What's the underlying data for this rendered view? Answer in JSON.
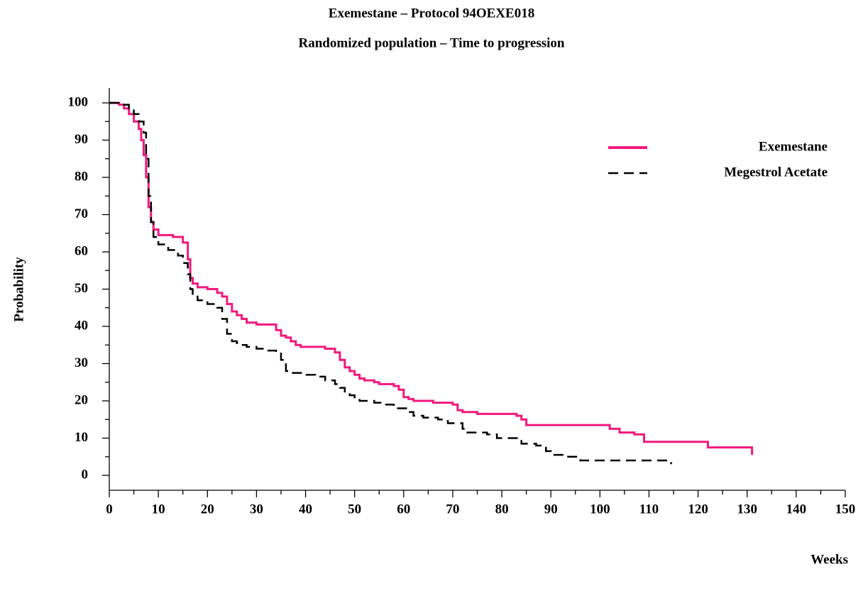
{
  "chart_data": {
    "type": "step",
    "title": "Exemestane   – Protocol 94OEXE018",
    "subtitle": "Randomized population  – Time to progression",
    "x_label": "Weeks",
    "y_label": "Probability",
    "xlim": [
      0,
      150
    ],
    "ylim": [
      -4,
      104
    ],
    "xticks": [
      0,
      10,
      20,
      30,
      40,
      50,
      60,
      70,
      80,
      90,
      100,
      110,
      120,
      130,
      140,
      150
    ],
    "yticks": [
      0,
      10,
      20,
      30,
      40,
      50,
      60,
      70,
      80,
      90,
      100
    ],
    "legend": "upper right",
    "series": [
      {
        "name": "Exemestane",
        "color": "#f0197d",
        "dash": false,
        "x": [
          0,
          2,
          3,
          4,
          5,
          6,
          6.5,
          7,
          7.5,
          8,
          8.5,
          9,
          10,
          13,
          15,
          16,
          16.5,
          17,
          18,
          20,
          22,
          23,
          24,
          25,
          26,
          27,
          28,
          30,
          34,
          35,
          36,
          37,
          38,
          39,
          44,
          46,
          47,
          48,
          49,
          50,
          51,
          52,
          54,
          55,
          58,
          59,
          60,
          61,
          62,
          66,
          70,
          71,
          72,
          75,
          83,
          84,
          85,
          102,
          104,
          107,
          109,
          122,
          131
        ],
        "values": [
          100,
          99.5,
          98.5,
          97,
          95,
          93,
          90,
          86,
          80,
          72,
          68,
          66,
          64.5,
          64,
          62.5,
          58,
          53,
          51.5,
          50.5,
          50,
          49,
          48,
          46,
          44,
          43,
          42,
          41,
          40.5,
          39,
          37.5,
          37,
          36,
          35,
          34.5,
          34,
          33,
          31,
          29,
          28,
          27,
          26,
          25.5,
          25,
          24.5,
          24,
          23,
          21,
          20.5,
          20,
          19.5,
          19,
          17.5,
          17,
          16.5,
          16,
          15,
          13.5,
          12.5,
          11.5,
          11,
          9,
          7.5,
          5.5
        ]
      },
      {
        "name": "Megestrol Acetate",
        "color": "#000000",
        "dash": true,
        "x": [
          0,
          3,
          4,
          5,
          6,
          7,
          7.5,
          8,
          8.5,
          9,
          10,
          12,
          14,
          15,
          16,
          16.5,
          17,
          18,
          20,
          22,
          23,
          24,
          25,
          26,
          27,
          28,
          30,
          32,
          34,
          35,
          36,
          37,
          40,
          42,
          44,
          46,
          47,
          48,
          49,
          50,
          51,
          54,
          56,
          58,
          61,
          62,
          64,
          67,
          69,
          72,
          73,
          77,
          79,
          84,
          87,
          89,
          90,
          93,
          96,
          114.5
        ],
        "values": [
          100,
          99.5,
          98.5,
          97,
          95,
          92,
          85,
          75,
          68,
          64,
          62,
          60.5,
          59,
          57,
          54,
          50,
          48,
          47,
          46,
          45,
          42,
          38,
          36,
          35.5,
          35,
          34.5,
          34,
          33.5,
          33,
          31,
          28,
          27.5,
          27,
          26.5,
          25.5,
          24.5,
          23.5,
          22.5,
          21.5,
          20.5,
          20,
          19.5,
          19,
          18,
          17,
          16,
          15.5,
          15,
          14,
          12.5,
          11.5,
          11,
          10,
          8.5,
          8,
          6.5,
          5.5,
          5,
          4,
          3
        ]
      }
    ]
  }
}
